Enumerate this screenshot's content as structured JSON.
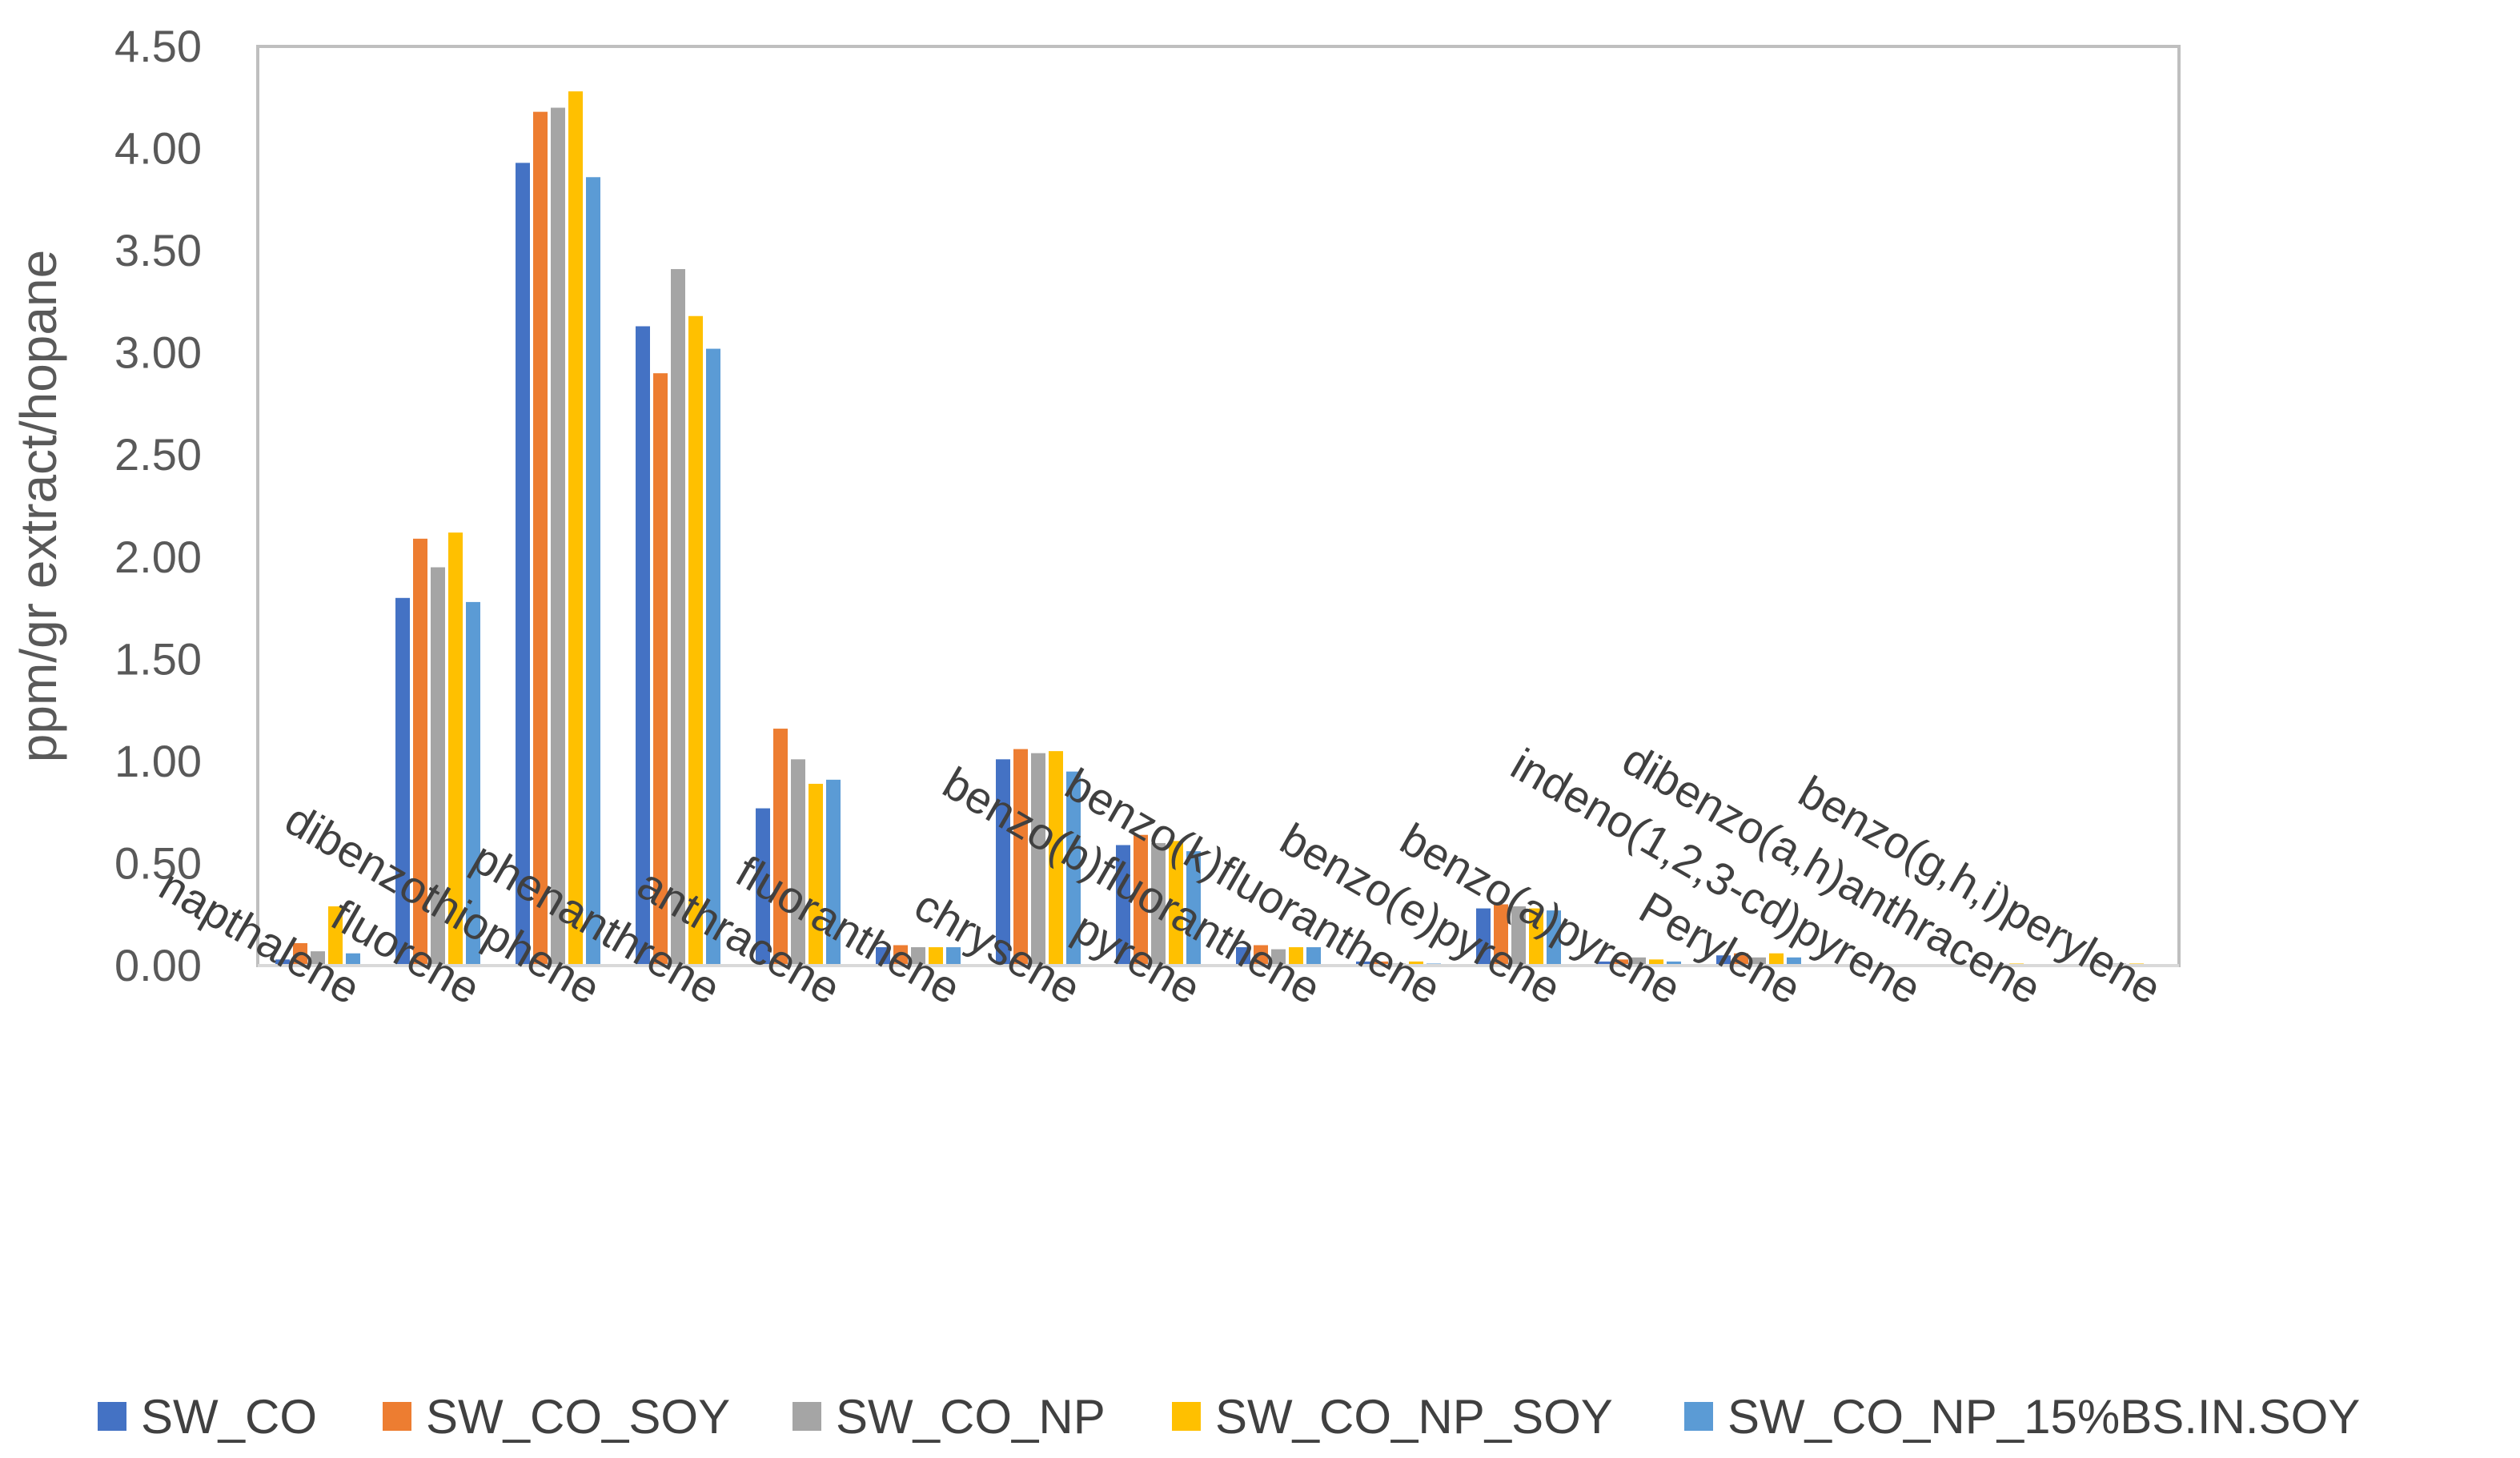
{
  "chart_data": {
    "type": "bar",
    "title": "",
    "xlabel": "",
    "ylabel": "ppm/gr extract/hopane",
    "ylim": [
      0,
      4.5
    ],
    "yticks": [
      "0.00",
      "0.50",
      "1.00",
      "1.50",
      "2.00",
      "2.50",
      "3.00",
      "3.50",
      "4.00",
      "4.50"
    ],
    "grid": false,
    "legend_position": "bottom",
    "categories": [
      "napthalene",
      "fluorene",
      "dibenzothiophene",
      "phenanthrene",
      "anthracene",
      "fluoranthene",
      "chrysene",
      "pyrene",
      "benzo(b)fluoranthene",
      "benzo(k)fluoranthene",
      "benzo(e)pyrene",
      "benzo(a)pyrene",
      "Perylene",
      "indeno(1,2,3-cd)pyrene",
      "dibenzo(a,h)anthracene",
      "benzo(g,h,i)perylene"
    ],
    "series": [
      {
        "name": "SW_CO",
        "color": "#4472C4",
        "values": [
          0.03,
          1.8,
          3.93,
          3.13,
          0.77,
          0.09,
          1.01,
          0.59,
          0.09,
          0.02,
          0.28,
          0.02,
          0.05,
          0.0,
          0.0,
          0.0
        ]
      },
      {
        "name": "SW_CO_SOY",
        "color": "#ED7D31",
        "values": [
          0.11,
          2.09,
          4.18,
          2.9,
          1.16,
          0.1,
          1.06,
          0.64,
          0.1,
          0.02,
          0.3,
          0.03,
          0.06,
          0.0,
          0.0,
          0.0
        ]
      },
      {
        "name": "SW_CO_NP",
        "color": "#A5A5A5",
        "values": [
          0.07,
          1.95,
          4.2,
          3.41,
          1.01,
          0.09,
          1.04,
          0.6,
          0.08,
          0.01,
          0.29,
          0.04,
          0.04,
          0.0,
          0.0,
          0.01
        ]
      },
      {
        "name": "SW_CO_NP_SOY",
        "color": "#FFC000",
        "values": [
          0.29,
          2.12,
          4.28,
          3.18,
          0.89,
          0.09,
          1.05,
          0.61,
          0.09,
          0.02,
          0.28,
          0.03,
          0.06,
          0.0,
          0.01,
          0.01
        ]
      },
      {
        "name": "SW_CO_NP_15%BS.IN.SOY",
        "color": "#5B9BD5",
        "values": [
          0.06,
          1.78,
          3.86,
          3.02,
          0.91,
          0.09,
          0.95,
          0.56,
          0.09,
          0.01,
          0.27,
          0.02,
          0.04,
          0.0,
          0.0,
          0.0
        ]
      }
    ]
  }
}
